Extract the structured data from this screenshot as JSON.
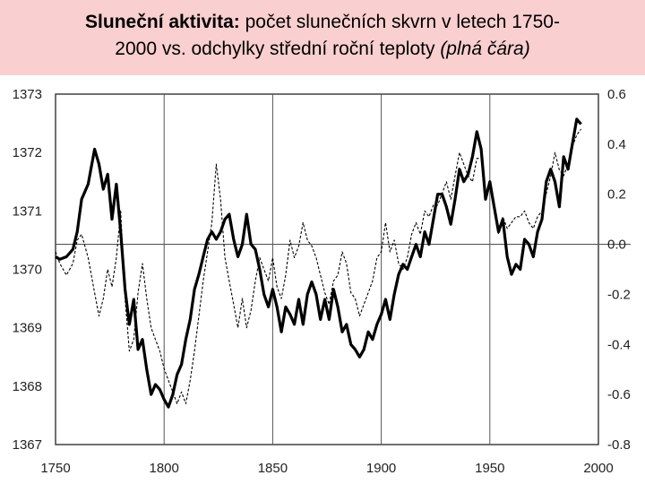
{
  "title": {
    "bold": "Sluneční aktivita:",
    "line1_rest": " počet slunečních skvrn v letech 1750-",
    "line2": "2000 vs. odchylky střední roční teploty ",
    "line2_italic": "(plná čára)"
  },
  "chart_data": {
    "type": "line",
    "title": "Sluneční aktivita: počet slunečních skvrn v letech 1750-2000 vs. odchylky střední roční teploty (plná čára)",
    "xlim": [
      1750,
      2000
    ],
    "ylim_left": [
      1367,
      1373
    ],
    "ylim_right": [
      -0.8,
      0.6
    ],
    "x_ticks": [
      "1750",
      "1800",
      "1850",
      "1900",
      "1950",
      "2000"
    ],
    "y_left_ticks": [
      "1367",
      "1368",
      "1369",
      "1370",
      "1371",
      "1372",
      "1373"
    ],
    "y_right_ticks": [
      "-0.8",
      "-0.6",
      "-0.4",
      "-0.2",
      "0.0",
      "0.2",
      "0.4",
      "0.6"
    ],
    "grid": "vertical lines at 1800, 1850, 1900, 1950 and horizontal zero line on right axis",
    "series": [
      {
        "style": "solid-thick",
        "axis": "right",
        "color": "#000000",
        "x": [
          1750,
          1752,
          1755,
          1758,
          1760,
          1762,
          1765,
          1768,
          1770,
          1772,
          1774,
          1776,
          1778,
          1780,
          1782,
          1784,
          1786,
          1788,
          1790,
          1792,
          1794,
          1796,
          1798,
          1800,
          1802,
          1804,
          1806,
          1808,
          1810,
          1812,
          1814,
          1816,
          1818,
          1820,
          1822,
          1824,
          1826,
          1828,
          1830,
          1832,
          1834,
          1836,
          1838,
          1840,
          1842,
          1844,
          1846,
          1848,
          1850,
          1852,
          1854,
          1856,
          1858,
          1860,
          1862,
          1864,
          1866,
          1868,
          1870,
          1872,
          1874,
          1876,
          1878,
          1880,
          1882,
          1884,
          1886,
          1888,
          1890,
          1892,
          1894,
          1896,
          1898,
          1900,
          1902,
          1904,
          1906,
          1908,
          1910,
          1912,
          1914,
          1916,
          1918,
          1920,
          1922,
          1924,
          1926,
          1928,
          1930,
          1932,
          1934,
          1936,
          1938,
          1940,
          1942,
          1944,
          1946,
          1948,
          1950,
          1952,
          1954,
          1956,
          1958,
          1960,
          1962,
          1964,
          1966,
          1968,
          1970,
          1972,
          1974,
          1976,
          1978,
          1980,
          1982,
          1984,
          1986,
          1988,
          1990,
          1992
        ],
        "y": [
          -0.05,
          -0.06,
          -0.05,
          -0.02,
          0.05,
          0.18,
          0.24,
          0.38,
          0.32,
          0.22,
          0.28,
          0.1,
          0.24,
          0.05,
          -0.18,
          -0.32,
          -0.22,
          -0.42,
          -0.38,
          -0.5,
          -0.6,
          -0.56,
          -0.58,
          -0.62,
          -0.65,
          -0.6,
          -0.52,
          -0.48,
          -0.38,
          -0.3,
          -0.18,
          -0.12,
          -0.05,
          0.02,
          0.05,
          0.02,
          0.05,
          0.1,
          0.12,
          0.02,
          -0.05,
          0.0,
          0.12,
          0.0,
          -0.02,
          -0.1,
          -0.2,
          -0.25,
          -0.18,
          -0.25,
          -0.35,
          -0.25,
          -0.28,
          -0.32,
          -0.22,
          -0.32,
          -0.2,
          -0.15,
          -0.2,
          -0.3,
          -0.22,
          -0.3,
          -0.18,
          -0.25,
          -0.35,
          -0.32,
          -0.4,
          -0.42,
          -0.45,
          -0.42,
          -0.35,
          -0.38,
          -0.32,
          -0.28,
          -0.22,
          -0.3,
          -0.2,
          -0.12,
          -0.08,
          -0.1,
          -0.05,
          0.0,
          -0.05,
          0.05,
          0.0,
          0.1,
          0.2,
          0.2,
          0.15,
          0.08,
          0.18,
          0.3,
          0.25,
          0.28,
          0.35,
          0.45,
          0.38,
          0.18,
          0.25,
          0.15,
          0.05,
          0.1,
          -0.05,
          -0.12,
          -0.08,
          -0.1,
          0.02,
          0.0,
          -0.05,
          0.05,
          0.1,
          0.25,
          0.3,
          0.25,
          0.15,
          0.35,
          0.3,
          0.4,
          0.5,
          0.48
        ]
      },
      {
        "style": "dashed-thin",
        "axis": "left",
        "color": "#000000",
        "x": [
          1750,
          1752,
          1755,
          1758,
          1760,
          1762,
          1765,
          1768,
          1770,
          1772,
          1774,
          1776,
          1778,
          1780,
          1782,
          1784,
          1786,
          1788,
          1790,
          1792,
          1794,
          1796,
          1798,
          1800,
          1802,
          1804,
          1806,
          1808,
          1810,
          1812,
          1814,
          1816,
          1818,
          1820,
          1822,
          1824,
          1826,
          1828,
          1830,
          1832,
          1834,
          1836,
          1838,
          1840,
          1842,
          1844,
          1846,
          1848,
          1850,
          1852,
          1854,
          1856,
          1858,
          1860,
          1862,
          1864,
          1866,
          1868,
          1870,
          1872,
          1874,
          1876,
          1878,
          1880,
          1882,
          1884,
          1886,
          1888,
          1890,
          1892,
          1894,
          1896,
          1898,
          1900,
          1902,
          1904,
          1906,
          1908,
          1910,
          1912,
          1914,
          1916,
          1918,
          1920,
          1922,
          1924,
          1926,
          1928,
          1930,
          1932,
          1934,
          1936,
          1938,
          1940,
          1942,
          1944,
          1946,
          1948,
          1950,
          1952,
          1954,
          1956,
          1958,
          1960,
          1962,
          1964,
          1966,
          1968,
          1970,
          1972,
          1974,
          1976,
          1978,
          1980,
          1982,
          1984,
          1986,
          1988,
          1990,
          1992
        ],
        "y": [
          1370.3,
          1370.1,
          1369.9,
          1370.1,
          1370.5,
          1370.6,
          1370.2,
          1369.6,
          1369.2,
          1369.5,
          1370.0,
          1369.7,
          1370.2,
          1371.0,
          1369.5,
          1368.6,
          1368.8,
          1369.6,
          1370.1,
          1369.5,
          1369.0,
          1368.8,
          1368.6,
          1368.3,
          1368.1,
          1367.9,
          1367.7,
          1367.9,
          1367.7,
          1368.1,
          1368.6,
          1369.2,
          1369.8,
          1370.3,
          1370.8,
          1371.8,
          1371.2,
          1370.2,
          1369.8,
          1369.4,
          1369.0,
          1369.5,
          1369.0,
          1369.3,
          1369.8,
          1370.2,
          1370.0,
          1369.8,
          1370.2,
          1369.7,
          1369.5,
          1369.9,
          1370.5,
          1370.2,
          1370.4,
          1370.8,
          1370.5,
          1370.4,
          1370.2,
          1369.9,
          1369.6,
          1369.4,
          1369.8,
          1369.9,
          1370.3,
          1370.1,
          1369.6,
          1369.5,
          1369.2,
          1369.4,
          1369.6,
          1369.8,
          1370.2,
          1370.3,
          1370.8,
          1370.3,
          1370.5,
          1370.1,
          1370.0,
          1370.2,
          1370.6,
          1370.8,
          1370.6,
          1371.0,
          1370.9,
          1371.1,
          1371.1,
          1371.3,
          1371.5,
          1371.2,
          1371.6,
          1372.0,
          1371.8,
          1371.6,
          1371.5,
          1371.9,
          1371.9,
          1371.3,
          1371.5,
          1371.1,
          1370.6,
          1370.9,
          1370.7,
          1370.8,
          1370.9,
          1370.9,
          1371.0,
          1370.8,
          1370.7,
          1370.9,
          1371.0,
          1371.3,
          1371.6,
          1372.0,
          1371.7,
          1371.6,
          1371.8,
          1372.1,
          1372.3,
          1372.4
        ]
      }
    ]
  }
}
